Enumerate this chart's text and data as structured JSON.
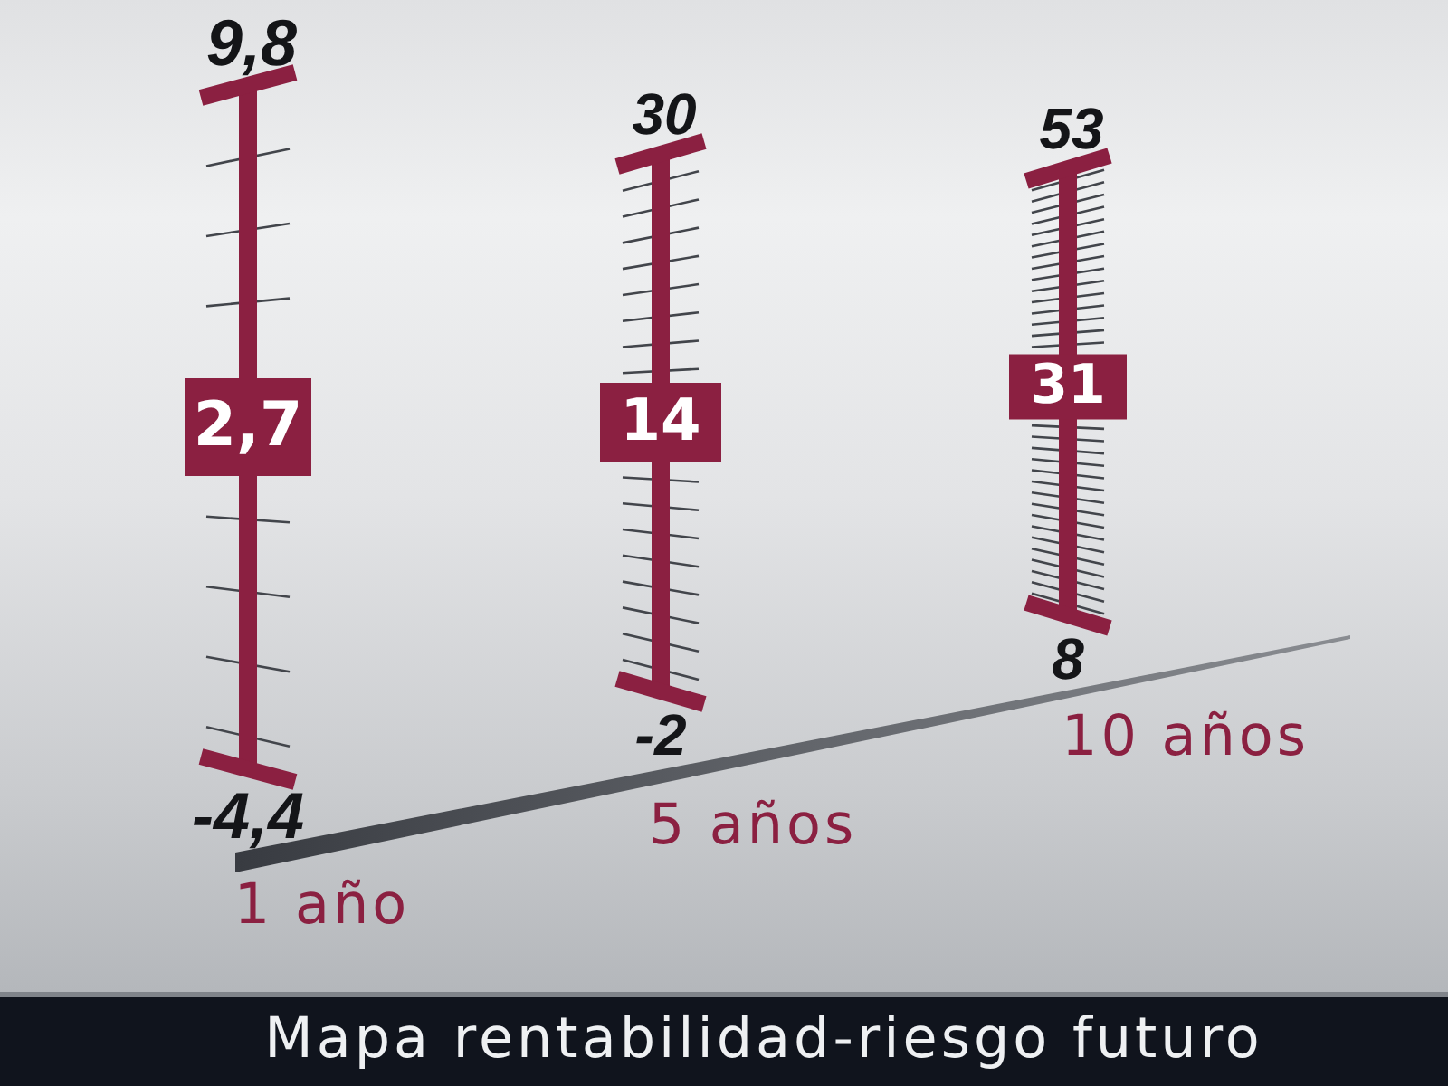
{
  "chart_data": {
    "type": "other",
    "title": "Mapa rentabilidad-riesgo futuro",
    "categories": [
      "1 año",
      "5 años",
      "10 años"
    ],
    "series": [
      {
        "color": "#8b2041",
        "values": [
          -4.4,
          -2,
          8
        ],
        "value_labels": [
          "-4,4",
          "-2",
          "8"
        ]
      },
      {
        "color": "#8b2041",
        "values": [
          2.7,
          14,
          31
        ],
        "value_labels": [
          "2,7",
          "14",
          "31"
        ]
      },
      {
        "color": "#8b2041",
        "values": [
          9.8,
          30,
          53
        ],
        "value_labels": [
          "9,8",
          "30",
          "53"
        ]
      }
    ]
  }
}
